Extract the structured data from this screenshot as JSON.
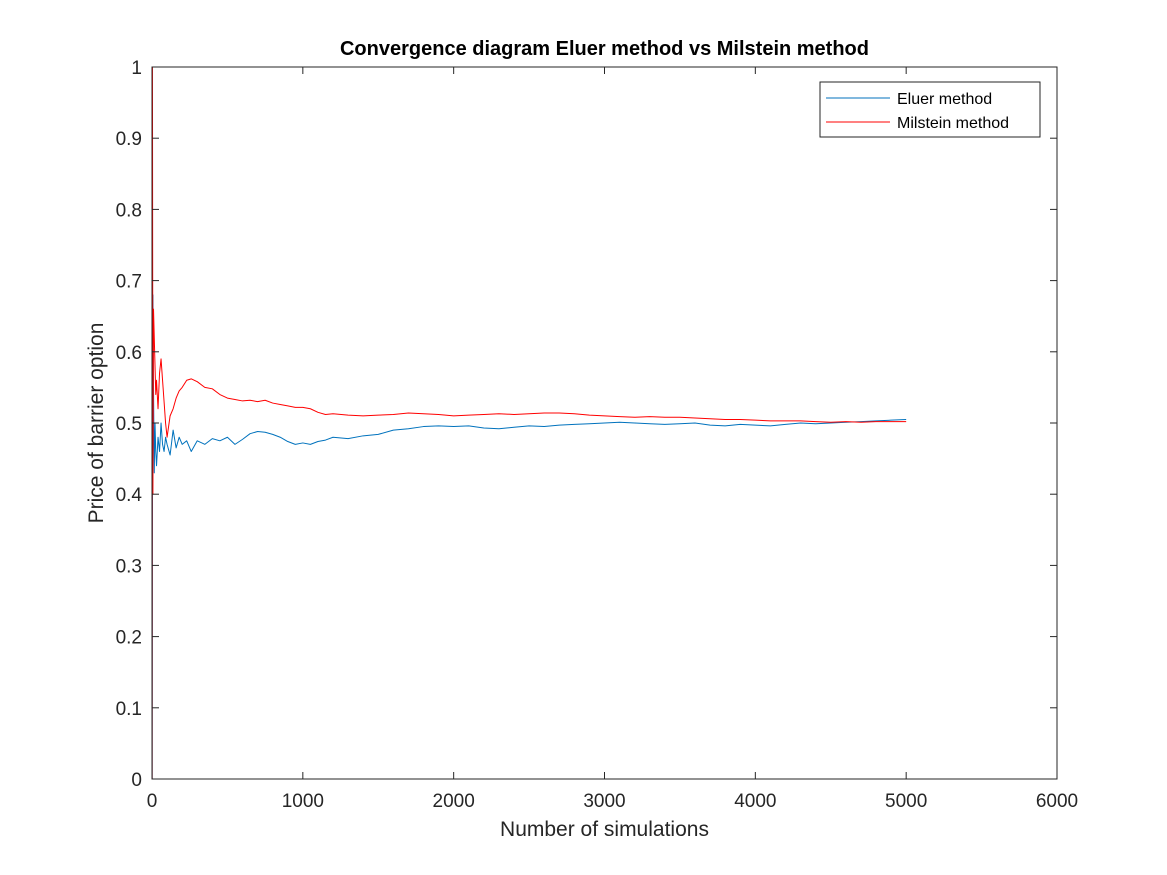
{
  "chart_data": {
    "type": "line",
    "title": "Convergence diagram Eluer method vs Milstein method",
    "xlabel": "Number of simulations",
    "ylabel": "Price of barrier option",
    "xlim": [
      0,
      6000
    ],
    "ylim": [
      0,
      1
    ],
    "xticks": [
      0,
      1000,
      2000,
      3000,
      4000,
      5000,
      6000
    ],
    "yticks": [
      0,
      0.1,
      0.2,
      0.3,
      0.4,
      0.5,
      0.6,
      0.7,
      0.8,
      0.9,
      1
    ],
    "xtick_labels": [
      "0",
      "1000",
      "2000",
      "3000",
      "4000",
      "5000",
      "6000"
    ],
    "ytick_labels": [
      "0",
      "0.1",
      "0.2",
      "0.3",
      "0.4",
      "0.5",
      "0.6",
      "0.7",
      "0.8",
      "0.9",
      "1"
    ],
    "grid": false,
    "legend_position": "top-right",
    "series": [
      {
        "name": "Eluer method",
        "color": "#0072bd",
        "x": [
          1,
          3,
          6,
          10,
          15,
          20,
          25,
          30,
          40,
          50,
          60,
          70,
          80,
          90,
          100,
          120,
          140,
          160,
          180,
          200,
          230,
          260,
          300,
          350,
          400,
          450,
          500,
          550,
          600,
          650,
          700,
          750,
          800,
          850,
          900,
          950,
          1000,
          1050,
          1100,
          1150,
          1200,
          1300,
          1400,
          1500,
          1600,
          1700,
          1800,
          1900,
          2000,
          2100,
          2200,
          2300,
          2400,
          2500,
          2600,
          2700,
          2800,
          2900,
          3000,
          3100,
          3200,
          3300,
          3400,
          3500,
          3600,
          3700,
          3800,
          3900,
          4000,
          4100,
          4200,
          4300,
          4400,
          4500,
          4600,
          4700,
          4800,
          4900,
          5000
        ],
        "y": [
          0.0,
          0.45,
          0.68,
          0.55,
          0.43,
          0.5,
          0.46,
          0.44,
          0.48,
          0.46,
          0.5,
          0.47,
          0.46,
          0.48,
          0.47,
          0.455,
          0.49,
          0.465,
          0.48,
          0.47,
          0.475,
          0.46,
          0.475,
          0.47,
          0.478,
          0.475,
          0.48,
          0.47,
          0.477,
          0.485,
          0.488,
          0.487,
          0.484,
          0.48,
          0.474,
          0.47,
          0.472,
          0.47,
          0.474,
          0.476,
          0.48,
          0.478,
          0.482,
          0.484,
          0.49,
          0.492,
          0.495,
          0.496,
          0.495,
          0.496,
          0.493,
          0.492,
          0.494,
          0.496,
          0.495,
          0.497,
          0.498,
          0.499,
          0.5,
          0.501,
          0.5,
          0.499,
          0.498,
          0.499,
          0.5,
          0.497,
          0.496,
          0.498,
          0.497,
          0.496,
          0.498,
          0.5,
          0.499,
          0.5,
          0.501,
          0.502,
          0.503,
          0.504,
          0.505
        ]
      },
      {
        "name": "Milstein method",
        "color": "#ff0000",
        "x": [
          1,
          3,
          6,
          10,
          15,
          20,
          25,
          30,
          40,
          50,
          60,
          70,
          80,
          90,
          100,
          120,
          140,
          160,
          180,
          200,
          230,
          260,
          300,
          350,
          400,
          450,
          500,
          550,
          600,
          650,
          700,
          750,
          800,
          850,
          900,
          950,
          1000,
          1050,
          1100,
          1150,
          1200,
          1300,
          1400,
          1500,
          1600,
          1700,
          1800,
          1900,
          2000,
          2100,
          2200,
          2300,
          2400,
          2500,
          2600,
          2700,
          2800,
          2900,
          3000,
          3100,
          3200,
          3300,
          3400,
          3500,
          3600,
          3700,
          3800,
          3900,
          4000,
          4100,
          4200,
          4300,
          4400,
          4500,
          4600,
          4700,
          4800,
          4900,
          5000
        ],
        "y": [
          0.0,
          1.0,
          0.4,
          0.66,
          0.62,
          0.58,
          0.54,
          0.56,
          0.52,
          0.57,
          0.59,
          0.56,
          0.53,
          0.5,
          0.48,
          0.51,
          0.52,
          0.535,
          0.545,
          0.55,
          0.56,
          0.562,
          0.558,
          0.55,
          0.548,
          0.54,
          0.535,
          0.533,
          0.531,
          0.532,
          0.53,
          0.532,
          0.528,
          0.526,
          0.524,
          0.522,
          0.522,
          0.52,
          0.515,
          0.512,
          0.513,
          0.511,
          0.51,
          0.511,
          0.512,
          0.514,
          0.513,
          0.512,
          0.51,
          0.511,
          0.512,
          0.513,
          0.512,
          0.513,
          0.514,
          0.514,
          0.513,
          0.511,
          0.51,
          0.509,
          0.508,
          0.509,
          0.508,
          0.508,
          0.507,
          0.506,
          0.505,
          0.505,
          0.504,
          0.503,
          0.503,
          0.503,
          0.502,
          0.501,
          0.502,
          0.501,
          0.502,
          0.502,
          0.502
        ]
      }
    ]
  }
}
